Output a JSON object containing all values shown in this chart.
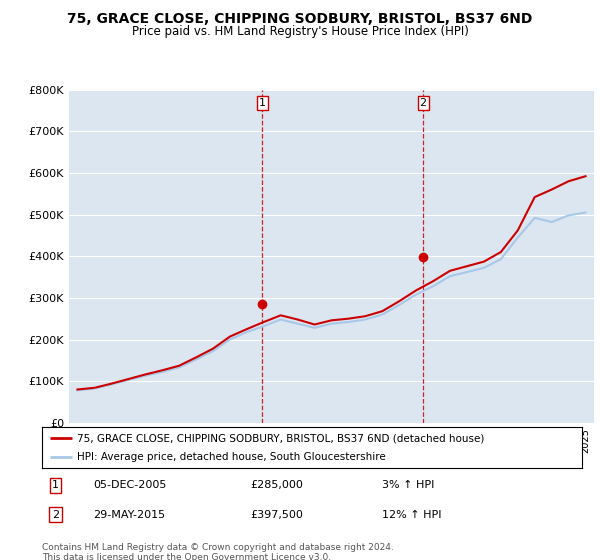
{
  "title": "75, GRACE CLOSE, CHIPPING SODBURY, BRISTOL, BS37 6ND",
  "subtitle": "Price paid vs. HM Land Registry's House Price Index (HPI)",
  "background_color": "#ffffff",
  "plot_bg_color": "#dce6f1",
  "grid_color": "#ffffff",
  "ylim": [
    0,
    800000
  ],
  "yticks": [
    0,
    100000,
    200000,
    300000,
    400000,
    500000,
    600000,
    700000,
    800000
  ],
  "ytick_labels": [
    "£0",
    "£100K",
    "£200K",
    "£300K",
    "£400K",
    "£500K",
    "£600K",
    "£700K",
    "£800K"
  ],
  "red_line_label": "75, GRACE CLOSE, CHIPPING SODBURY, BRISTOL, BS37 6ND (detached house)",
  "blue_line_label": "HPI: Average price, detached house, South Gloucestershire",
  "sale1_year": 2005.92,
  "sale1_price": 285000,
  "sale1_date": "05-DEC-2005",
  "sale1_price_str": "£285,000",
  "sale1_hpi": "3% ↑ HPI",
  "sale2_year": 2015.41,
  "sale2_price": 397500,
  "sale2_date": "29-MAY-2015",
  "sale2_price_str": "£397,500",
  "sale2_hpi": "12% ↑ HPI",
  "footer1": "Contains HM Land Registry data © Crown copyright and database right 2024.",
  "footer2": "This data is licensed under the Open Government Licence v3.0.",
  "hpi_years": [
    1995,
    1996,
    1997,
    1998,
    1999,
    2000,
    2001,
    2002,
    2003,
    2004,
    2005,
    2006,
    2007,
    2008,
    2009,
    2010,
    2011,
    2012,
    2013,
    2014,
    2015,
    2016,
    2017,
    2018,
    2019,
    2020,
    2021,
    2022,
    2023,
    2024,
    2025
  ],
  "hpi_values": [
    78000,
    82000,
    92000,
    103000,
    113000,
    122000,
    133000,
    152000,
    172000,
    200000,
    218000,
    232000,
    248000,
    238000,
    228000,
    238000,
    242000,
    248000,
    260000,
    283000,
    308000,
    328000,
    352000,
    362000,
    372000,
    393000,
    445000,
    492000,
    482000,
    498000,
    505000
  ],
  "price_years": [
    1995,
    1996,
    1997,
    1998,
    1999,
    2000,
    2001,
    2002,
    2003,
    2004,
    2005,
    2006,
    2007,
    2008,
    2009,
    2010,
    2011,
    2012,
    2013,
    2014,
    2015,
    2016,
    2017,
    2018,
    2019,
    2020,
    2021,
    2022,
    2023,
    2024,
    2025
  ],
  "price_values": [
    80000,
    84000,
    94000,
    105000,
    116000,
    126000,
    137000,
    157000,
    178000,
    207000,
    225000,
    242000,
    258000,
    248000,
    236000,
    246000,
    250000,
    256000,
    268000,
    292000,
    318000,
    340000,
    365000,
    376000,
    387000,
    410000,
    462000,
    542000,
    560000,
    580000,
    592000
  ]
}
